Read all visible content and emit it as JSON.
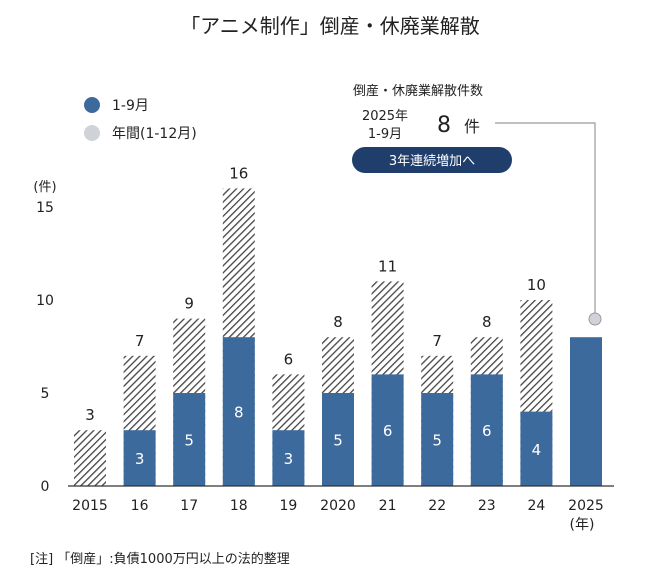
{
  "chart_data": {
    "type": "bar",
    "title": "「アニメ制作」倒産・休廃業解散",
    "ylabel": "(件)",
    "xunit": "(年)",
    "ylim": [
      0,
      15
    ],
    "yticks": [
      0,
      5,
      10,
      15
    ],
    "categories": [
      "2015",
      "16",
      "17",
      "18",
      "19",
      "2020",
      "21",
      "22",
      "23",
      "24",
      "2025"
    ],
    "series": [
      {
        "name": "年間(1-12月)",
        "values": [
          3,
          7,
          9,
          16,
          null,
          8,
          11,
          7,
          8,
          10,
          null
        ],
        "color": "#444444",
        "pattern": "diagonal-hatch"
      },
      {
        "name": "1-9月",
        "values": [
          null,
          3,
          5,
          8,
          3,
          5,
          6,
          5,
          6,
          4,
          8
        ],
        "color": "#3d6a9c"
      }
    ],
    "annual_labels": [
      "3",
      "7",
      "9",
      "16",
      "6",
      "8",
      "11",
      "7",
      "8",
      "10",
      ""
    ],
    "legend_position": "top-left",
    "grid": false,
    "callout": {
      "heading": "倒産・休廃業解散件数",
      "period_line1": "2025年",
      "period_line2": "1-9月",
      "value": "8",
      "unit": "件",
      "badge": "3年連続増加へ"
    }
  },
  "footnote": "[注] 「倒産」:負債1000万円以上の法的整理",
  "colors": {
    "bar_blue": "#3d6a9c",
    "hatch": "#444444",
    "badge_bg": "#1f3e6b",
    "marker_gray": "#c8c8c8",
    "axis": "#333333"
  }
}
